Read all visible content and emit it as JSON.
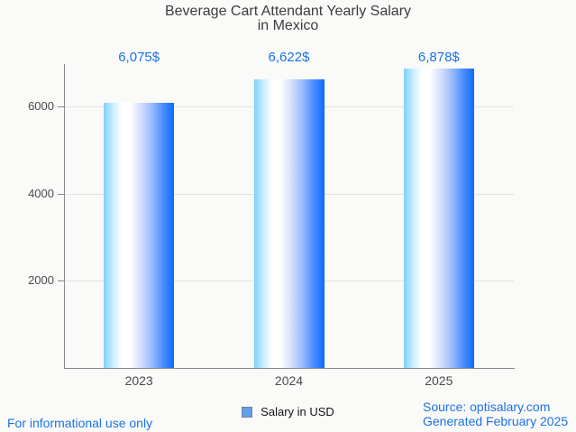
{
  "chart_data": {
    "type": "bar",
    "title": "Beverage Cart Attendant Yearly Salary in Mexico",
    "title_lines": [
      "Beverage Cart Attendant Yearly Salary",
      "in Mexico"
    ],
    "categories": [
      "2023",
      "2024",
      "2025"
    ],
    "series": [
      {
        "name": "Salary in USD",
        "values": [
          6075,
          6622,
          6878
        ]
      }
    ],
    "value_labels": [
      "6,075$",
      "6,622$",
      "6,878$"
    ],
    "xlabel": "",
    "ylabel": "",
    "yticks": [
      2000,
      4000,
      6000
    ],
    "ylim": [
      0,
      6950
    ],
    "grid": true,
    "legend_position": "bottom-center",
    "bar_gradient": [
      "#7ed2fb",
      "#ffffff",
      "#0d6bfe"
    ]
  },
  "legend": {
    "label": "Salary in USD",
    "swatch_color": "#64a0e8"
  },
  "footer": {
    "disclaimer": "For informational use only",
    "source": "Source: optisalary.com",
    "generated": "Generated February 2025"
  },
  "colors": {
    "accent_blue": "#1a73e8",
    "title_text": "#3d3d3d",
    "axis_text": "#4a4a4a",
    "background": "#fafaf8"
  }
}
